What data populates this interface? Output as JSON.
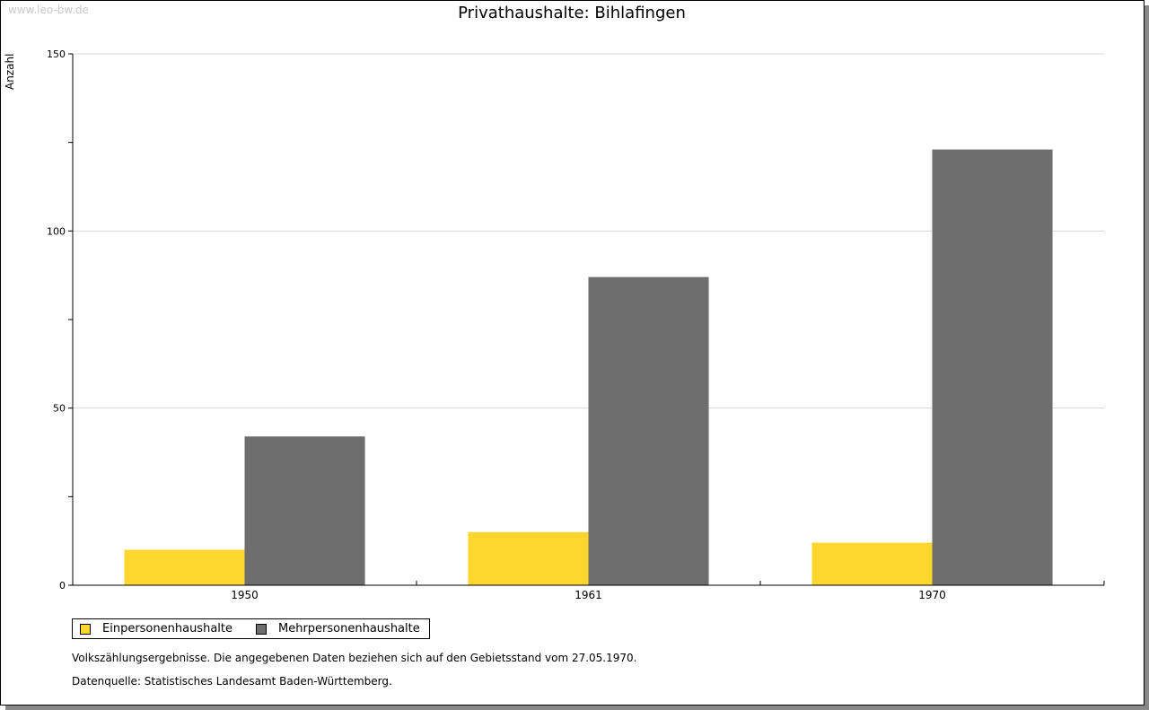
{
  "watermark": "www.leo-bw.de",
  "chart_data": {
    "type": "bar",
    "title": "Privathaushalte: Bihlafingen",
    "ylabel": "Anzahl",
    "xlabel": "",
    "categories": [
      "1950",
      "1961",
      "1970"
    ],
    "series": [
      {
        "name": "Einpersonenhaushalte",
        "color": "#fdd62e",
        "values": [
          10,
          15,
          12
        ]
      },
      {
        "name": "Mehrpersonenhaushalte",
        "color": "#6e6e6e",
        "values": [
          42,
          87,
          123
        ]
      }
    ],
    "ylim": [
      0,
      150
    ],
    "yticks": [
      0,
      50,
      100,
      150
    ],
    "grid": true,
    "legend": "bottom-left"
  },
  "notes": [
    "Volkszählungsergebnisse. Die angegebenen Daten beziehen sich auf den Gebietsstand vom 27.05.1970.",
    "Datenquelle: Statistisches Landesamt Baden-Württemberg."
  ]
}
